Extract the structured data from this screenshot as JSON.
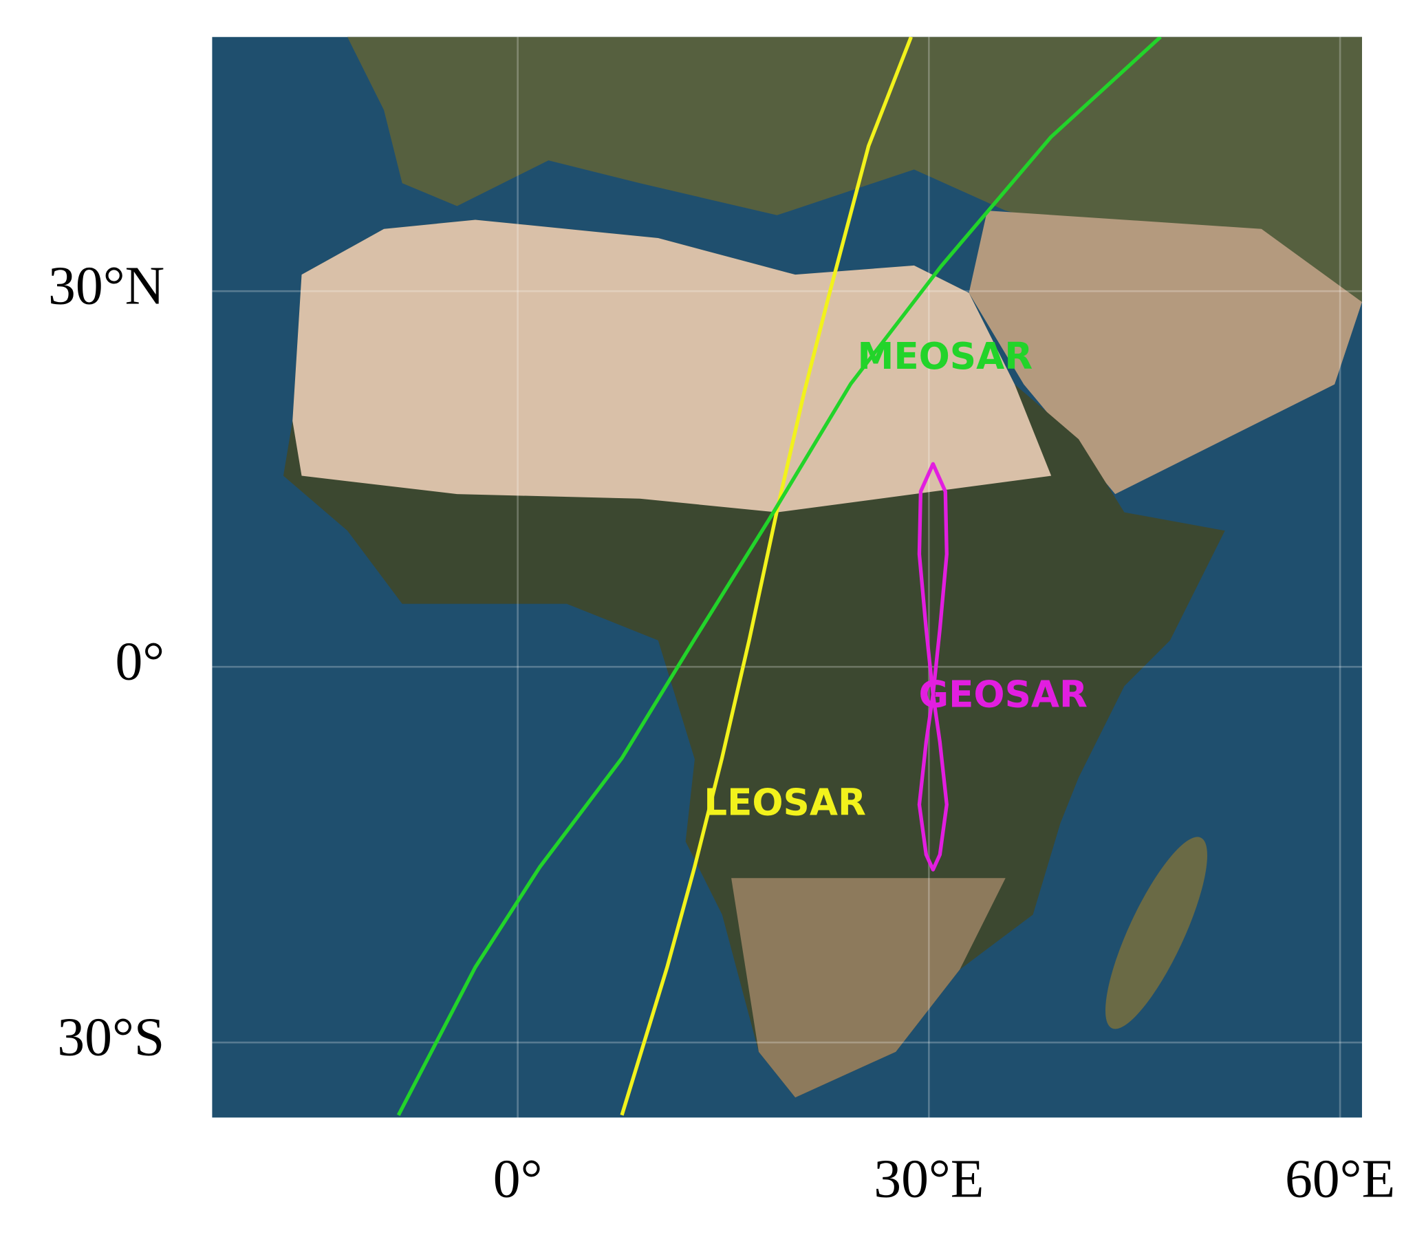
{
  "map": {
    "xlim": [
      -22.3,
      61.6
    ],
    "ylim": [
      -36.0,
      50.3
    ],
    "xticks": [
      {
        "value": 0,
        "label": "0°"
      },
      {
        "value": 30,
        "label": "30°E"
      },
      {
        "value": 60,
        "label": "60°E"
      }
    ],
    "yticks": [
      {
        "value": 30,
        "label": "30°N"
      },
      {
        "value": 0,
        "label": "0°"
      },
      {
        "value": -30,
        "label": "30°S"
      }
    ],
    "grid": true,
    "tracks": [
      {
        "name": "LEOSAR",
        "color": "#f2f21c",
        "lon": [
          28.7,
          25.6,
          22.6,
          20.9,
          18.9,
          16.9,
          14.9,
          12.9,
          10.9,
          7.6
        ],
        "lat": [
          50.3,
          41.6,
          29.2,
          21.9,
          12.4,
          2.2,
          -7.3,
          -16.0,
          -24.0,
          -35.8
        ]
      },
      {
        "name": "MEOSAR",
        "color": "#22d42a",
        "lon": [
          46.9,
          38.9,
          30.9,
          24.3,
          18.3,
          12.9,
          7.6,
          1.6,
          -3.1,
          -8.7
        ],
        "lat": [
          50.3,
          42.3,
          32.0,
          22.6,
          11.7,
          2.2,
          -7.3,
          -16.0,
          -24.0,
          -35.8
        ]
      },
      {
        "name": "GEOSAR",
        "color": "#e21ee0",
        "lon": [
          30.3,
          30.8,
          31.3,
          31.2,
          30.3,
          29.4,
          29.3,
          29.8,
          30.3,
          30.8,
          31.3,
          30.8,
          30.3,
          29.8,
          29.3,
          29.8,
          30.3
        ],
        "lat": [
          -2.2,
          3,
          9,
          14,
          16.2,
          14,
          9,
          3,
          -2.2,
          -6,
          -11,
          -15,
          -16.2,
          -15,
          -11,
          -6,
          -2.2
        ]
      }
    ]
  }
}
